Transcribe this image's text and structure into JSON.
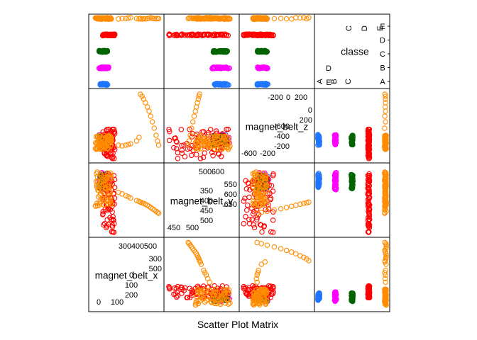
{
  "chart_data": {
    "type": "scatter",
    "title": "Scatter Plot Matrix",
    "colors": {
      "A": "#1f75fe",
      "B": "#ff00ff",
      "C": "#006400",
      "D": "#ff0000",
      "E": "#ff8c00"
    },
    "variables": [
      "magnet_belt_x",
      "magnet_belt_y",
      "magnet_belt_z",
      "classe"
    ],
    "diagonal": {
      "magnet_belt_x": {
        "label": "magnet_belt_x",
        "upper_ticks": [
          "300",
          "400",
          "500"
        ],
        "upper_ticks_right": [
          "300",
          "500"
        ],
        "lower_ticks": [
          "0",
          "100"
        ],
        "lower_ticks_left": [
          "0",
          "100",
          "200"
        ]
      },
      "magnet_belt_y": {
        "label": "magnet_belt_y",
        "upper_ticks": [
          "500",
          "600"
        ],
        "upper_ticks_right": [
          "550",
          "600",
          "650"
        ],
        "lower_ticks": [
          "450",
          "500"
        ],
        "lower_ticks_left": [
          "350",
          "400",
          "450",
          "500"
        ]
      },
      "magnet_belt_z": {
        "label": "magnet_belt_z",
        "upper_ticks": [
          "-200",
          "0",
          "200"
        ],
        "upper_ticks_right": [
          "0",
          "200"
        ],
        "lower_ticks": [
          "-600",
          "-200"
        ],
        "lower_ticks_left": [
          "-600",
          "-400",
          "-200"
        ]
      },
      "classe": {
        "label": "classe",
        "levels": [
          "A",
          "B",
          "C",
          "D",
          "E"
        ]
      }
    },
    "axis_ranges": {
      "magnet_belt_x": [
        -60,
        490
      ],
      "magnet_belt_y": [
        350,
        670
      ],
      "magnet_belt_z": [
        -630,
        300
      ]
    },
    "grid": false,
    "legend": "none",
    "clusters": [
      {
        "cls": "A",
        "x": [
          0,
          60
        ],
        "y": [
          565,
          640
        ],
        "z": [
          -440,
          -290
        ]
      },
      {
        "cls": "B",
        "x": [
          -20,
          70
        ],
        "y": [
          560,
          645
        ],
        "z": [
          -440,
          -290
        ]
      },
      {
        "cls": "C",
        "x": [
          -10,
          60
        ],
        "y": [
          565,
          640
        ],
        "z": [
          -440,
          -300
        ]
      },
      {
        "cls": "D",
        "x": [
          20,
          120
        ],
        "y": [
          350,
          640
        ],
        "z": [
          -630,
          -200
        ]
      },
      {
        "cls": "E",
        "x": [
          -40,
          100
        ],
        "y": [
          480,
          660
        ],
        "z": [
          -500,
          -300
        ]
      }
    ],
    "outliers": [
      [
        330,
        500,
        280
      ],
      [
        345,
        497,
        250
      ],
      [
        358,
        494,
        210
      ],
      [
        372,
        490,
        160
      ],
      [
        388,
        485,
        100
      ],
      [
        402,
        480,
        40
      ],
      [
        416,
        474,
        -30
      ],
      [
        430,
        468,
        -110
      ],
      [
        445,
        462,
        -200
      ],
      [
        460,
        456,
        -300
      ],
      [
        472,
        450,
        -380
      ],
      [
        482,
        446,
        -440
      ],
      [
        250,
        520,
        -420
      ],
      [
        230,
        526,
        -430
      ],
      [
        210,
        532,
        -440
      ],
      [
        180,
        540,
        -450
      ],
      [
        150,
        548,
        -440
      ],
      [
        300,
        508,
        -380
      ],
      [
        320,
        504,
        -330
      ]
    ]
  }
}
